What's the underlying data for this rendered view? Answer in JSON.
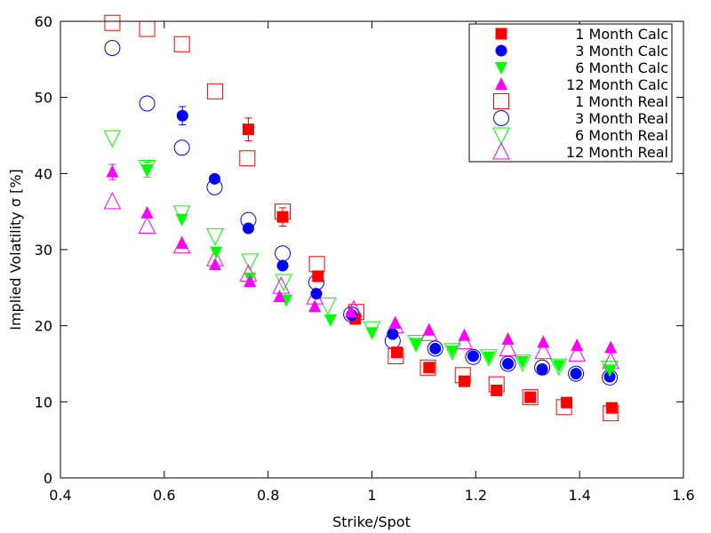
{
  "chart_data": {
    "type": "scatter",
    "xlabel": "Strike/Spot",
    "ylabel": "Implied Volatility σ [%]",
    "xlim": [
      0.4,
      1.6
    ],
    "ylim": [
      0,
      60
    ],
    "xticks": [
      0.4,
      0.6,
      0.8,
      1,
      1.2,
      1.4,
      1.6
    ],
    "xtick_labels": [
      "0.4",
      "0.6",
      "0.8",
      "1",
      "1.2",
      "1.4",
      "1.6"
    ],
    "yticks": [
      0,
      10,
      20,
      30,
      40,
      50,
      60
    ],
    "ytick_labels": [
      "0",
      "10",
      "20",
      "30",
      "40",
      "50",
      "60"
    ],
    "grid": false,
    "legend_position": "top-right",
    "series": [
      {
        "name": "1 Month Calc",
        "marker": "square-filled",
        "color": "#ff0000",
        "x": [
          0.762,
          0.828,
          0.896,
          0.968,
          1.048,
          1.11,
          1.178,
          1.24,
          1.305,
          1.375,
          1.462
        ],
        "y": [
          45.8,
          34.3,
          26.5,
          20.9,
          16.5,
          14.5,
          12.7,
          11.5,
          10.6,
          9.9,
          9.2
        ],
        "err": [
          1.5,
          1.2,
          0,
          0,
          0,
          0,
          0,
          0,
          0,
          0,
          0
        ]
      },
      {
        "name": "3 Month Calc",
        "marker": "circle-filled",
        "color": "#0000ff",
        "x": [
          0.635,
          0.697,
          0.762,
          0.828,
          0.893,
          0.961,
          1.04,
          1.122,
          1.195,
          1.262,
          1.328,
          1.393,
          1.458
        ],
        "y": [
          47.6,
          39.3,
          32.8,
          27.9,
          24.2,
          21.4,
          18.9,
          17.0,
          16.0,
          15.0,
          14.3,
          13.7,
          13.3
        ],
        "err": [
          1.2,
          0,
          0,
          0,
          0,
          0,
          0,
          0,
          0,
          0,
          0,
          0,
          0
        ]
      },
      {
        "name": "6 Month Calc",
        "marker": "triangle-down-filled",
        "color": "#00ff00",
        "x": [
          0.567,
          0.634,
          0.7,
          0.765,
          0.835,
          0.92,
          1.0,
          1.085,
          1.155,
          1.225,
          1.29,
          1.36,
          1.458
        ],
        "y": [
          40.5,
          34.0,
          29.7,
          26.3,
          23.4,
          20.8,
          19.1,
          17.7,
          16.7,
          15.9,
          15.3,
          14.8,
          14.2
        ],
        "err": [
          1.0,
          0,
          0,
          0,
          0,
          0,
          0,
          0,
          0,
          0,
          0,
          0,
          0
        ]
      },
      {
        "name": "12 Month Calc",
        "marker": "triangle-up-filled",
        "color": "#ff00ff",
        "x": [
          0.5,
          0.567,
          0.634,
          0.698,
          0.765,
          0.822,
          0.89,
          0.96,
          1.045,
          1.11,
          1.178,
          1.262,
          1.33,
          1.395,
          1.46
        ],
        "y": [
          40.2,
          34.8,
          30.8,
          28.0,
          25.8,
          23.8,
          22.5,
          21.8,
          20.3,
          19.4,
          18.7,
          18.2,
          17.8,
          17.4,
          17.1
        ],
        "err": [
          1.0,
          0,
          0,
          0,
          0,
          0,
          0,
          0,
          0,
          0,
          0,
          0,
          0,
          0,
          0
        ]
      },
      {
        "name": "1 Month Real",
        "marker": "square-open",
        "color": "#ff0000",
        "x": [
          0.5,
          0.567,
          0.634,
          0.698,
          0.76,
          0.828,
          0.894,
          0.97,
          1.046,
          1.108,
          1.175,
          1.24,
          1.305,
          1.37,
          1.46
        ],
        "y": [
          59.8,
          59.0,
          57.0,
          50.8,
          42.0,
          35.0,
          28.1,
          21.8,
          16.0,
          14.5,
          13.5,
          12.3,
          10.6,
          9.3,
          8.5
        ]
      },
      {
        "name": "3 Month Real",
        "marker": "circle-open",
        "color": "#0000ff",
        "x": [
          0.5,
          0.567,
          0.634,
          0.697,
          0.762,
          0.828,
          0.893,
          0.96,
          1.04,
          1.122,
          1.195,
          1.262,
          1.328,
          1.393,
          1.458
        ],
        "y": [
          56.5,
          49.2,
          43.4,
          38.2,
          33.9,
          29.5,
          25.7,
          21.5,
          18.0,
          17.0,
          15.9,
          15.0,
          14.5,
          13.7,
          13.2
        ]
      },
      {
        "name": "6 Month Real",
        "marker": "triangle-down-open",
        "color": "#00ff00",
        "x": [
          0.5,
          0.567,
          0.634,
          0.698,
          0.765,
          0.83,
          0.915,
          1.0,
          1.085,
          1.155,
          1.225,
          1.29,
          1.36,
          1.458
        ],
        "y": [
          44.7,
          40.8,
          34.8,
          31.8,
          28.5,
          25.8,
          22.7,
          19.6,
          17.8,
          16.7,
          15.9,
          15.2,
          14.7,
          14.4
        ]
      },
      {
        "name": "12 Month Real",
        "marker": "triangle-up-open",
        "color": "#ff00ff",
        "x": [
          0.5,
          0.567,
          0.634,
          0.698,
          0.762,
          0.825,
          0.89,
          0.965,
          1.045,
          1.11,
          1.178,
          1.262,
          1.33,
          1.395,
          1.46
        ],
        "y": [
          36.3,
          33.1,
          30.5,
          28.8,
          26.8,
          25.2,
          23.8,
          22.1,
          20.0,
          19.0,
          17.9,
          17.0,
          16.6,
          16.3,
          15.3
        ]
      }
    ]
  }
}
